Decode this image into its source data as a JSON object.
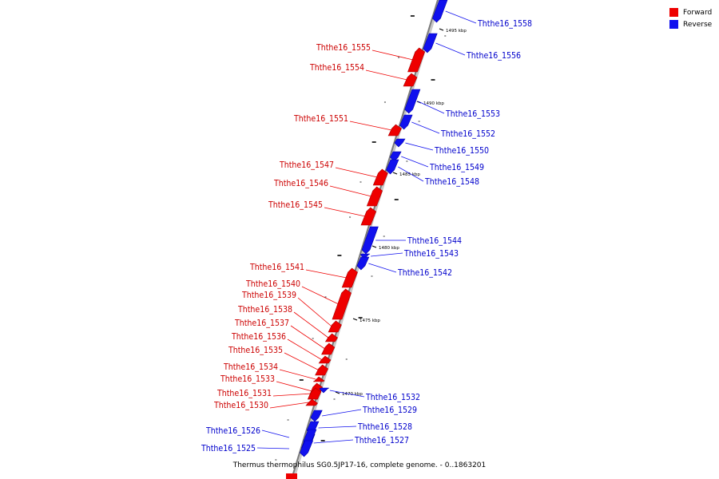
{
  "caption": "Thermus thermophilus SG0.5JP17-16, complete genome. - 0..1863201",
  "legend": [
    {
      "label": "Forward",
      "color": "#ee0000"
    },
    {
      "label": "Reverse",
      "color": "#1111ee"
    }
  ],
  "colors": {
    "forward": "#ee0000",
    "reverse": "#1111ee",
    "axis": "#7a7a7a"
  },
  "kbp_marks": [
    "1495 kbp",
    "1490 kbp",
    "1485 kbp",
    "1480 kbp",
    "1475 kbp",
    "1470 kbp"
  ],
  "genes_forward": [
    "Ththe16_1555",
    "Ththe16_1554",
    "Ththe16_1551",
    "Ththe16_1547",
    "Ththe16_1546",
    "Ththe16_1545",
    "Ththe16_1541",
    "Ththe16_1540",
    "Ththe16_1539",
    "Ththe16_1538",
    "Ththe16_1537",
    "Ththe16_1536",
    "Ththe16_1535",
    "Ththe16_1534",
    "Ththe16_1533",
    "Ththe16_1531",
    "Ththe16_1530"
  ],
  "genes_reverse": [
    "Ththe16_1558",
    "Ththe16_1556",
    "Ththe16_1553",
    "Ththe16_1552",
    "Ththe16_1550",
    "Ththe16_1549",
    "Ththe16_1548",
    "Ththe16_1544",
    "Ththe16_1543",
    "Ththe16_1542",
    "Ththe16_1532",
    "Ththe16_1529",
    "Ththe16_1528",
    "Ththe16_1527",
    "Ththe16_1526",
    "Ththe16_1525"
  ]
}
